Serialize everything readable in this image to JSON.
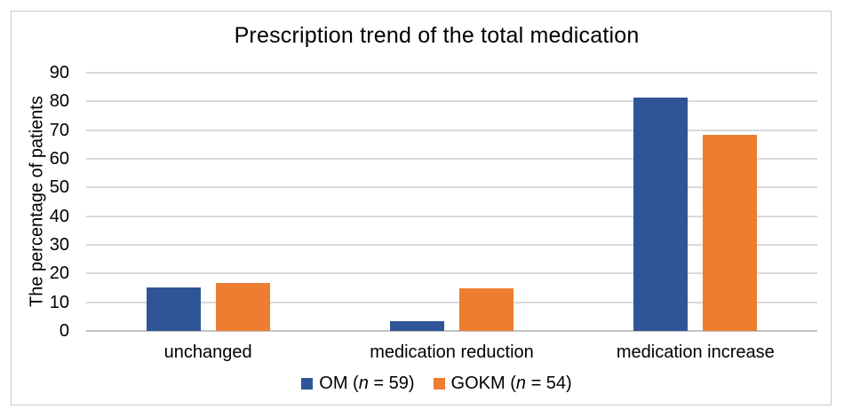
{
  "figure": {
    "background_color": "#ffffff",
    "border_color": "#c9c9c9"
  },
  "chart_data": {
    "type": "bar",
    "title": "Prescription trend of the total medication",
    "xlabel": "",
    "ylabel": "The percentage of patients",
    "categories": [
      "unchanged",
      "medication reduction",
      "medication increase"
    ],
    "series": [
      {
        "name": "OM",
        "n": 59,
        "color": "#2F5597",
        "values": [
          15.3,
          3.4,
          81.4
        ]
      },
      {
        "name": "GOKM",
        "n": 54,
        "color": "#ED7D31",
        "values": [
          16.7,
          14.8,
          68.5
        ]
      }
    ],
    "legend_n_symbol": "n",
    "legend_labels": [
      "OM (n = 59)",
      "GOKM (n = 54)"
    ],
    "ylim": [
      0,
      90
    ],
    "ytick_step": 10,
    "yticks": [
      0,
      10,
      20,
      30,
      40,
      50,
      60,
      70,
      80,
      90
    ],
    "grid": true,
    "gridline_color": "#d9d9d9",
    "legend_position": "bottom"
  }
}
